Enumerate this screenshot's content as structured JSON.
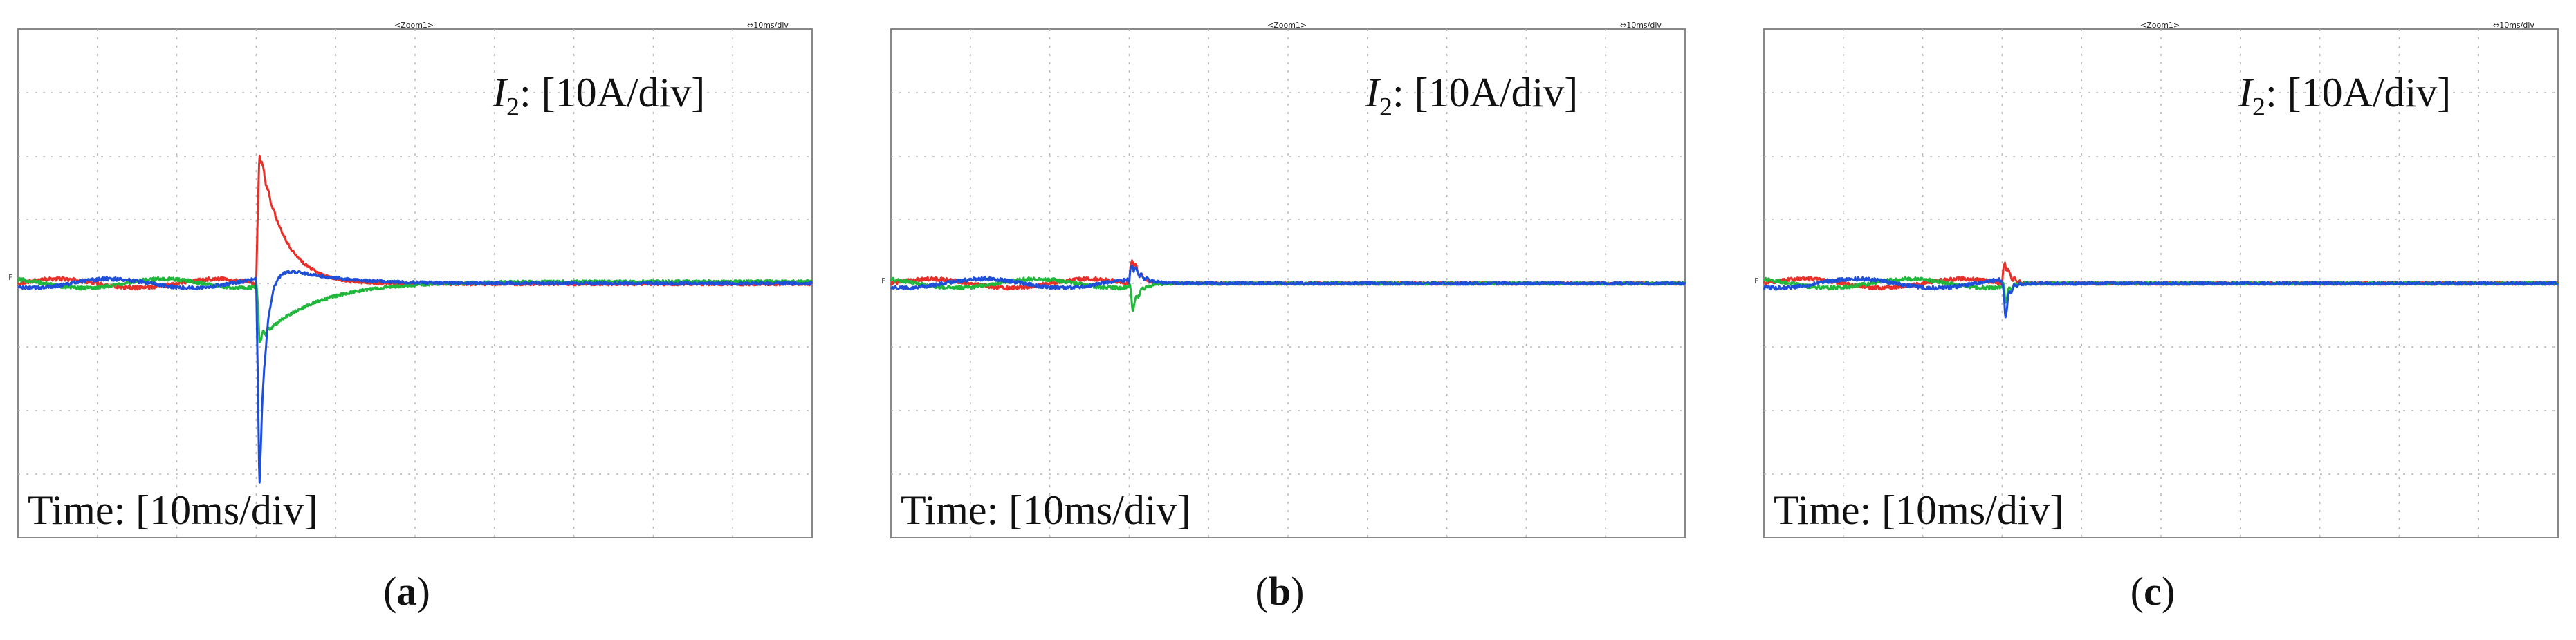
{
  "figure": {
    "panels": [
      {
        "id": "a",
        "caption": "a",
        "header_left": "<Zoom1>",
        "header_right": "⇔10ms/div",
        "current_label_symbol": "I",
        "current_label_sub": "2",
        "current_label_rest": ": [10A/div]",
        "time_label": "Time: [10ms/div]",
        "zero_marker": "F"
      },
      {
        "id": "b",
        "caption": "b",
        "header_left": "<Zoom1>",
        "header_right": "⇔10ms/div",
        "current_label_symbol": "I",
        "current_label_sub": "2",
        "current_label_rest": ": [10A/div]",
        "time_label": "Time: [10ms/div]",
        "zero_marker": "F"
      },
      {
        "id": "c",
        "caption": "c",
        "header_left": "<Zoom1>",
        "header_right": "⇔10ms/div",
        "current_label_symbol": "I",
        "current_label_sub": "2",
        "current_label_rest": ": [10A/div]",
        "time_label": "Time: [10ms/div]",
        "zero_marker": "F"
      }
    ]
  },
  "chart_data": [
    {
      "type": "line",
      "panel": "a",
      "title": "",
      "xlabel": "Time: [10ms/div]",
      "ylabel": "I2: [10A/div]",
      "x_divisions": 10,
      "y_divisions": 8,
      "xlim": [
        0,
        100
      ],
      "ylim": [
        -40,
        40
      ],
      "grid": true,
      "disturbance_time": 30,
      "series": [
        {
          "name": "phase-red",
          "color": "#e8302a",
          "amplitude": 0.7,
          "phase": 0,
          "peak": 21.0,
          "decay": 3.0,
          "settle": -0.1
        },
        {
          "name": "phase-green",
          "color": "#1fb83a",
          "amplitude": 0.7,
          "phase": 2.094,
          "peak": -9.0,
          "decay": 7.0,
          "settle": 0.3
        },
        {
          "name": "phase-blue",
          "color": "#1f4fd8",
          "amplitude": 0.7,
          "phase": 4.189,
          "peak": -33.0,
          "decay": 0.8,
          "settle": 0.0,
          "secondary": 4.5
        }
      ]
    },
    {
      "type": "line",
      "panel": "b",
      "title": "",
      "xlabel": "Time: [10ms/div]",
      "ylabel": "I2: [10A/div]",
      "x_divisions": 10,
      "y_divisions": 8,
      "xlim": [
        0,
        100
      ],
      "ylim": [
        -40,
        40
      ],
      "grid": true,
      "disturbance_time": 30,
      "series": [
        {
          "name": "phase-red",
          "color": "#e8302a",
          "amplitude": 0.7,
          "phase": 0,
          "peak": 4.0,
          "decay": 0.9,
          "settle": 0.0
        },
        {
          "name": "phase-green",
          "color": "#1fb83a",
          "amplitude": 0.7,
          "phase": 2.094,
          "peak": -4.0,
          "decay": 0.9,
          "settle": 0.0
        },
        {
          "name": "phase-blue",
          "color": "#1f4fd8",
          "amplitude": 0.7,
          "phase": 4.189,
          "peak": 3.0,
          "decay": 1.2,
          "settle": 0.0
        }
      ]
    },
    {
      "type": "line",
      "panel": "c",
      "title": "",
      "xlabel": "Time: [10ms/div]",
      "ylabel": "I2: [10A/div]",
      "x_divisions": 10,
      "y_divisions": 8,
      "xlim": [
        0,
        100
      ],
      "ylim": [
        -40,
        40
      ],
      "grid": true,
      "disturbance_time": 30,
      "series": [
        {
          "name": "phase-red",
          "color": "#e8302a",
          "amplitude": 0.7,
          "phase": 0,
          "peak": 3.5,
          "decay": 0.6,
          "settle": 0.0
        },
        {
          "name": "phase-green",
          "color": "#1fb83a",
          "amplitude": 0.7,
          "phase": 2.094,
          "peak": -2.5,
          "decay": 0.6,
          "settle": 0.0
        },
        {
          "name": "phase-blue",
          "color": "#1f4fd8",
          "amplitude": 0.7,
          "phase": 4.189,
          "peak": -5.0,
          "decay": 0.5,
          "settle": 0.0
        }
      ]
    }
  ]
}
